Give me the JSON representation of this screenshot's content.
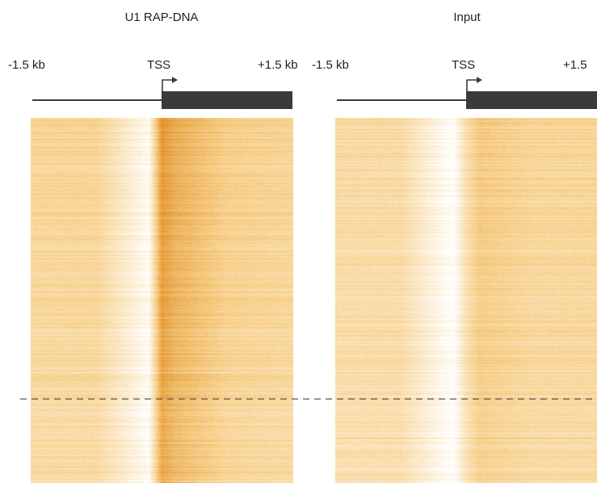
{
  "chart_data": [
    {
      "type": "heatmap",
      "title": "U1 RAP-DNA",
      "x_tick_labels": [
        "-1.5 kb",
        "TSS",
        "+1.5 kb"
      ],
      "x_range_kb": [
        -1.5,
        1.5
      ],
      "gene_track": {
        "upstream": "line",
        "gene_body": "thick bar",
        "tss_arrow": "right"
      },
      "colormap": {
        "low": "#ffffff",
        "mid": "#f7d08a",
        "high": "#e08a1e"
      },
      "profile": {
        "position_kb": [
          -1.5,
          -0.75,
          -0.15,
          0.0,
          0.15,
          0.75,
          1.5
        ],
        "relative_signal": [
          0.45,
          0.45,
          0.05,
          0.9,
          0.75,
          0.5,
          0.45
        ]
      },
      "divider": "dashed line near lower fifth of rows"
    },
    {
      "type": "heatmap",
      "title": "Input",
      "x_tick_labels": [
        "-1.5 kb",
        "TSS",
        "+1.5"
      ],
      "x_range_kb": [
        -1.5,
        1.5
      ],
      "gene_track": {
        "upstream": "line",
        "gene_body": "thick bar",
        "tss_arrow": "right"
      },
      "colormap": {
        "low": "#ffffff",
        "mid": "#f7d08a",
        "high": "#e08a1e"
      },
      "profile": {
        "position_kb": [
          -1.5,
          -0.75,
          -0.15,
          0.0,
          0.15,
          0.75,
          1.5
        ],
        "relative_signal": [
          0.4,
          0.4,
          0.0,
          0.35,
          0.55,
          0.45,
          0.45
        ]
      },
      "divider": "dashed line near lower fifth of rows"
    }
  ],
  "colors": {
    "text": "#222222",
    "gene_track": "#3a3a3a",
    "divider": "#555555"
  }
}
